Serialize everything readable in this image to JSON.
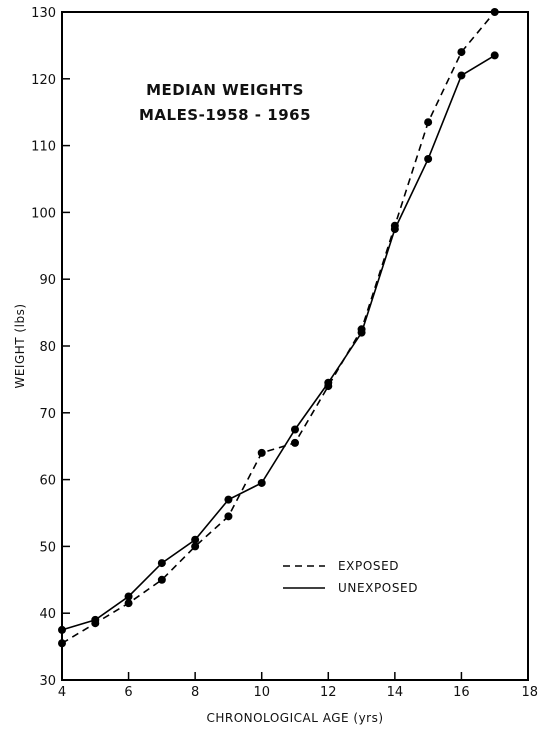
{
  "chart_data": {
    "type": "line",
    "title": [
      "MEDIAN WEIGHTS",
      "MALES-1958 - 1965"
    ],
    "xlabel": "CHRONOLOGICAL AGE (yrs)",
    "ylabel": "WEIGHT (lbs)",
    "xlim": [
      4,
      18
    ],
    "ylim": [
      30,
      130
    ],
    "xticks": [
      "4",
      "6",
      "8",
      "10",
      "12",
      "14",
      "16",
      "18"
    ],
    "yticks": [
      "30",
      "40",
      "50",
      "60",
      "70",
      "80",
      "90",
      "100",
      "110",
      "120",
      "130"
    ],
    "grid": false,
    "legend_position": "lower-right",
    "series": [
      {
        "name": "EXPOSED",
        "style": "dashed",
        "x": [
          4,
          5,
          6,
          7,
          8,
          9,
          10,
          11,
          12,
          13,
          14,
          15,
          16,
          17
        ],
        "y": [
          35.5,
          38.5,
          41.5,
          45,
          50,
          54.5,
          64,
          65.5,
          74,
          82.5,
          98,
          113.5,
          124,
          130
        ]
      },
      {
        "name": "UNEXPOSED",
        "style": "solid",
        "x": [
          4,
          5,
          6,
          7,
          8,
          9,
          10,
          11,
          12,
          13,
          14,
          15,
          16,
          17
        ],
        "y": [
          37.5,
          39,
          42.5,
          47.5,
          51,
          57,
          59.5,
          67.5,
          74.5,
          82,
          97.5,
          108,
          120.5,
          123.5
        ]
      }
    ]
  }
}
